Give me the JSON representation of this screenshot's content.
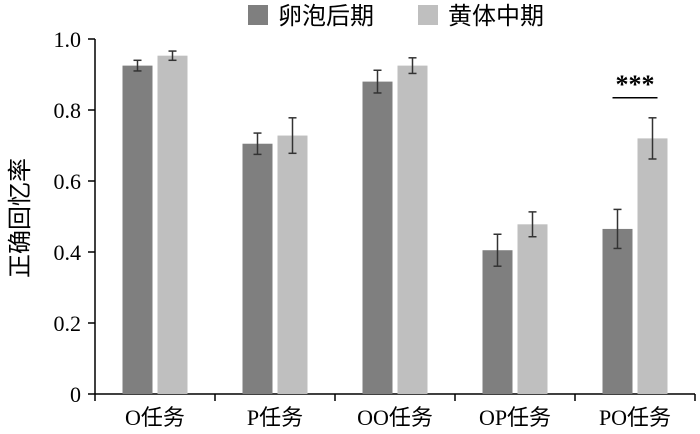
{
  "chart_data": {
    "type": "bar",
    "categories": [
      "O任务",
      "P任务",
      "OO任务",
      "OP任务",
      "PO任务"
    ],
    "series": [
      {
        "name": "卵泡后期",
        "color": "#7f7f7f",
        "values": [
          0.925,
          0.705,
          0.88,
          0.405,
          0.465
        ],
        "errors": [
          0.015,
          0.03,
          0.032,
          0.045,
          0.055
        ]
      },
      {
        "name": "黄体中期",
        "color": "#bfbfbf",
        "values": [
          0.953,
          0.728,
          0.925,
          0.478,
          0.72
        ],
        "errors": [
          0.013,
          0.05,
          0.022,
          0.035,
          0.058
        ]
      }
    ],
    "ylabel": "正确回忆率",
    "xlabel": "",
    "ylim": [
      0,
      1.0
    ],
    "yticks": [
      0,
      0.2,
      0.4,
      0.6,
      0.8,
      1.0
    ],
    "ytick_labels": [
      "0",
      "0.2",
      "0.4",
      "0.6",
      "0.8",
      "1.0"
    ],
    "legend_position": "top",
    "grid": false,
    "annotations": [
      {
        "category_index": 4,
        "text": "***"
      }
    ]
  }
}
